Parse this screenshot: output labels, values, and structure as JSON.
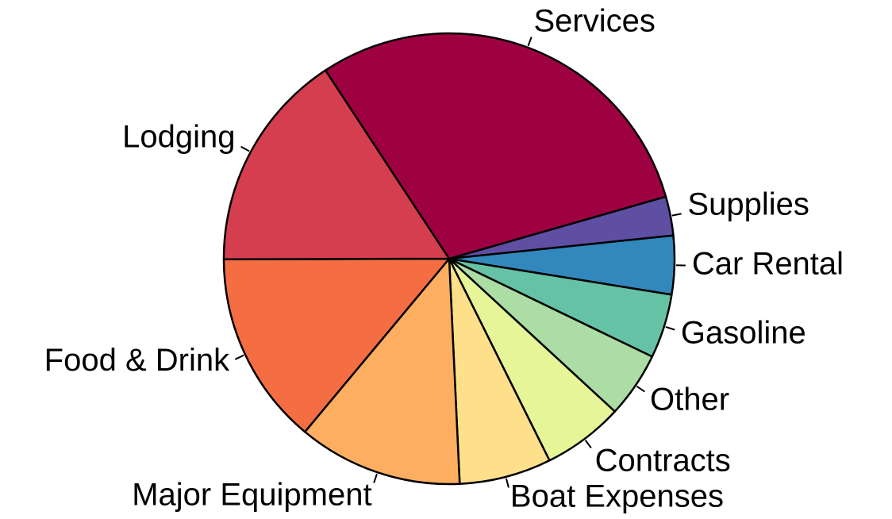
{
  "chart_data": {
    "type": "pie",
    "start_angle_deg": -16,
    "direction": "clockwise",
    "slices": [
      {
        "label": "Supplies",
        "value": 2.8,
        "color": "#5E4FA2"
      },
      {
        "label": "Car Rental",
        "value": 4.2,
        "color": "#3288BD"
      },
      {
        "label": "Gasoline",
        "value": 4.6,
        "color": "#66C2A5"
      },
      {
        "label": "Other",
        "value": 4.7,
        "color": "#ABDDA4"
      },
      {
        "label": "Contracts",
        "value": 5.8,
        "color": "#E6F598"
      },
      {
        "label": "Boat Expenses",
        "value": 6.6,
        "color": "#FEE08B"
      },
      {
        "label": "Major Equipment",
        "value": 11.8,
        "color": "#FDAE61"
      },
      {
        "label": "Food & Drink",
        "value": 13.9,
        "color": "#F46D43"
      },
      {
        "label": "Lodging",
        "value": 15.8,
        "color": "#D53E4F"
      },
      {
        "label": "Services",
        "value": 29.8,
        "color": "#9E0142"
      }
    ]
  }
}
